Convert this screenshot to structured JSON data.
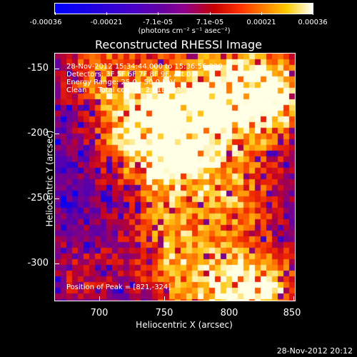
{
  "colorbar": {
    "ticks": [
      "-0.00036",
      "-0.00021",
      "-7.1e-05",
      "7.1e-05",
      "0.00021",
      "0.00036"
    ],
    "unit": "(photons cm⁻² s⁻¹ asec⁻²)"
  },
  "plot": {
    "title": "Reconstructed RHESSI Image",
    "annotations": {
      "time": "28-Nov-2012 15:34:44.000 to 15:36:56.000",
      "detectors": "Detectors: 3F 5F 6F 7F 8F 9F, Att 0",
      "energy": "Energy Range: 25.0 - 50.0 keV",
      "clean": "Clean     Total counts: 2.91E+03",
      "peak": "Position of Peak = [821,-324]"
    },
    "xlabel": "Heliocentric X (arcsec)",
    "ylabel": "Heliocentric Y (arcsec)",
    "xticks": [
      "700",
      "750",
      "800",
      "850"
    ],
    "yticks": [
      "-150",
      "-200",
      "-250",
      "-300"
    ]
  },
  "footer": {
    "timestamp": "28-Nov-2012 20:12"
  },
  "colors": {
    "background": "#000000",
    "text": "#ffffff"
  }
}
